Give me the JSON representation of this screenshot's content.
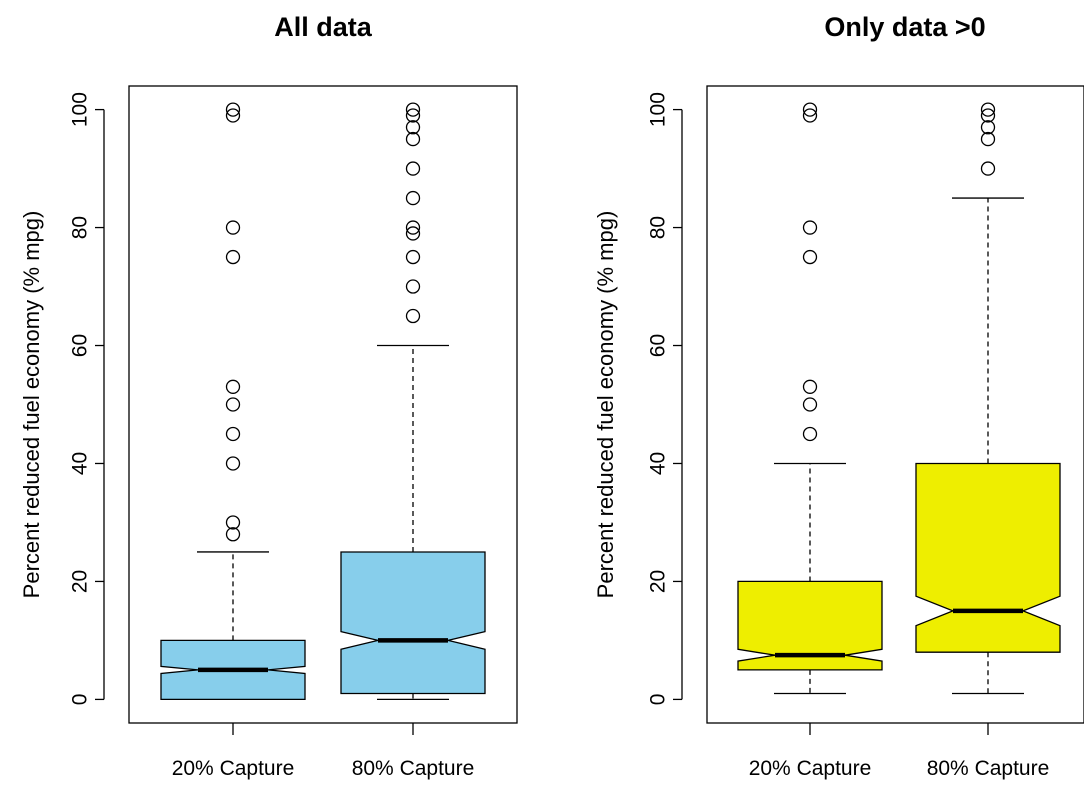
{
  "chart_data": [
    {
      "type": "boxplot",
      "title": "All data",
      "xlabel": "",
      "ylabel": "Percent reduced fuel economy (% mpg)",
      "ylim": [
        -4,
        104
      ],
      "yticks": [
        0,
        20,
        40,
        60,
        80,
        100
      ],
      "notched": true,
      "fill_color": "#87CEEB",
      "categories": [
        "20% Capture",
        "80% Capture"
      ],
      "boxes": [
        {
          "name": "20% Capture",
          "whisker_low": 0,
          "q1": 0,
          "notch_low": 4.4,
          "median": 5,
          "notch_high": 5.6,
          "q3": 10,
          "whisker_high": 25,
          "outliers": [
            28,
            30,
            40,
            45,
            50,
            53,
            75,
            80,
            99,
            100
          ]
        },
        {
          "name": "80% Capture",
          "whisker_low": 0,
          "q1": 1,
          "notch_low": 8.5,
          "median": 10,
          "notch_high": 11.5,
          "q3": 25,
          "whisker_high": 60,
          "outliers": [
            65,
            70,
            75,
            79,
            80,
            85,
            90,
            95,
            97,
            99,
            100
          ]
        }
      ]
    },
    {
      "type": "boxplot",
      "title": "Only data >0",
      "xlabel": "",
      "ylabel": "Percent reduced fuel economy (% mpg)",
      "ylim": [
        -4,
        104
      ],
      "yticks": [
        0,
        20,
        40,
        60,
        80,
        100
      ],
      "notched": true,
      "fill_color": "#EEEE00",
      "categories": [
        "20% Capture",
        "80% Capture"
      ],
      "boxes": [
        {
          "name": "20% Capture",
          "whisker_low": 1,
          "q1": 5,
          "notch_low": 6.5,
          "median": 7.5,
          "notch_high": 8.5,
          "q3": 20,
          "whisker_high": 40,
          "outliers": [
            45,
            50,
            53,
            75,
            80,
            99,
            100
          ]
        },
        {
          "name": "80% Capture",
          "whisker_low": 1,
          "q1": 8,
          "notch_low": 12.5,
          "median": 15,
          "notch_high": 17.5,
          "q3": 40,
          "whisker_high": 85,
          "outliers": [
            90,
            95,
            97,
            99,
            100
          ]
        }
      ]
    }
  ]
}
